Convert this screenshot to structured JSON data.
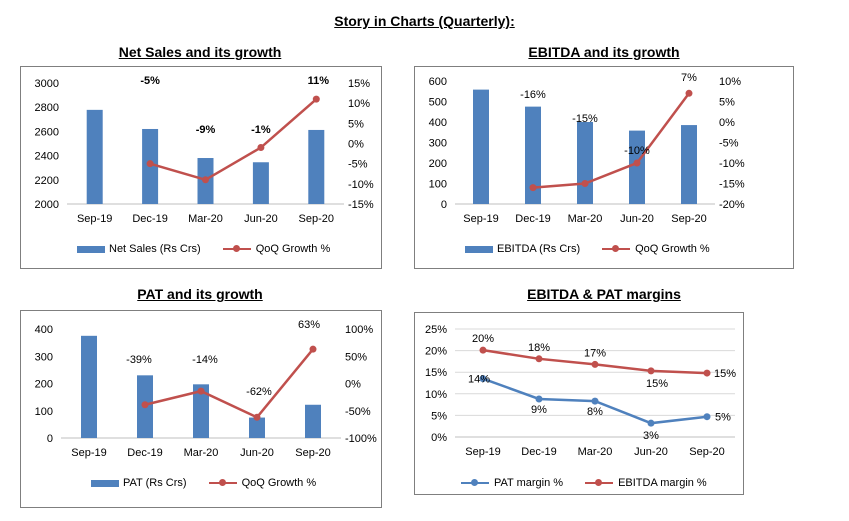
{
  "page_title": "Story in Charts (Quarterly):",
  "colors": {
    "bar": "#4f81bd",
    "line_red": "#c0504d",
    "line_blue": "#4f81bd"
  },
  "chart_data": [
    {
      "type": "bar",
      "title": "Net Sales and its growth",
      "categories": [
        "Sep-19",
        "Dec-19",
        "Mar-20",
        "Jun-20",
        "Sep-20"
      ],
      "series": [
        {
          "name": "Net Sales (Rs Crs)",
          "type": "bar",
          "axis": "left",
          "values": [
            2778,
            2620,
            2380,
            2345,
            2612
          ]
        },
        {
          "name": "QoQ Growth %",
          "type": "line",
          "axis": "right",
          "values": [
            null,
            -5,
            -9,
            -1,
            11
          ],
          "labels": [
            "",
            "-5%",
            "-9%",
            "-1%",
            "11%"
          ]
        }
      ],
      "y_left": {
        "min": 2000,
        "max": 3000,
        "ticks": [
          "2000",
          "2200",
          "2400",
          "2600",
          "2800",
          "3000"
        ]
      },
      "y_right": {
        "min": -15,
        "max": 15,
        "ticks": [
          "-15%",
          "-10%",
          "-5%",
          "0%",
          "5%",
          "10%",
          "15%"
        ]
      },
      "legend": "bottom"
    },
    {
      "type": "bar",
      "title": "EBITDA and its growth",
      "categories": [
        "Sep-19",
        "Dec-19",
        "Mar-20",
        "Jun-20",
        "Sep-20"
      ],
      "series": [
        {
          "name": "EBITDA (Rs Crs)",
          "type": "bar",
          "axis": "left",
          "values": [
            558,
            475,
            400,
            358,
            385
          ]
        },
        {
          "name": "QoQ Growth %",
          "type": "line",
          "axis": "right",
          "values": [
            null,
            -16,
            -15,
            -10,
            7
          ],
          "labels": [
            "",
            "-16%",
            "-15%",
            "-10%",
            "7%"
          ]
        }
      ],
      "y_left": {
        "min": 0,
        "max": 600,
        "ticks": [
          "0",
          "100",
          "200",
          "300",
          "400",
          "500",
          "600"
        ]
      },
      "y_right": {
        "min": -20,
        "max": 10,
        "ticks": [
          "-20%",
          "-15%",
          "-10%",
          "-5%",
          "0%",
          "5%",
          "10%"
        ]
      },
      "legend": "bottom"
    },
    {
      "type": "bar",
      "title": "PAT and its growth",
      "categories": [
        "Sep-19",
        "Dec-19",
        "Mar-20",
        "Jun-20",
        "Sep-20"
      ],
      "series": [
        {
          "name": "PAT (Rs Crs)",
          "type": "bar",
          "axis": "left",
          "values": [
            375,
            230,
            197,
            75,
            122
          ]
        },
        {
          "name": "QoQ Growth %",
          "type": "line",
          "axis": "right",
          "values": [
            null,
            -39,
            -14,
            -62,
            63
          ],
          "labels": [
            "",
            "-39%",
            "-14%",
            "-62%",
            "63%"
          ]
        }
      ],
      "y_left": {
        "min": 0,
        "max": 400,
        "ticks": [
          "0",
          "100",
          "200",
          "300",
          "400"
        ]
      },
      "y_right": {
        "min": -100,
        "max": 100,
        "ticks": [
          "-100%",
          "-50%",
          "0%",
          "50%",
          "100%"
        ]
      },
      "legend": "bottom"
    },
    {
      "type": "line",
      "title": "EBITDA & PAT margins",
      "categories": [
        "Sep-19",
        "Dec-19",
        "Mar-20",
        "Jun-20",
        "Sep-20"
      ],
      "series": [
        {
          "name": "PAT margin %",
          "type": "line",
          "axis": "left",
          "values": [
            13.5,
            8.8,
            8.3,
            3.2,
            4.7
          ],
          "labels": [
            "14%",
            "9%",
            "8%",
            "3%",
            "5%"
          ]
        },
        {
          "name": "EBITDA margin %",
          "type": "line",
          "axis": "left",
          "values": [
            20.1,
            18.1,
            16.8,
            15.3,
            14.8
          ],
          "labels": [
            "20%",
            "18%",
            "17%",
            "15%",
            "15%"
          ]
        }
      ],
      "y_left": {
        "min": 0,
        "max": 25,
        "ticks": [
          "0%",
          "5%",
          "10%",
          "15%",
          "20%",
          "25%"
        ]
      },
      "grid": true,
      "legend": "bottom"
    }
  ]
}
